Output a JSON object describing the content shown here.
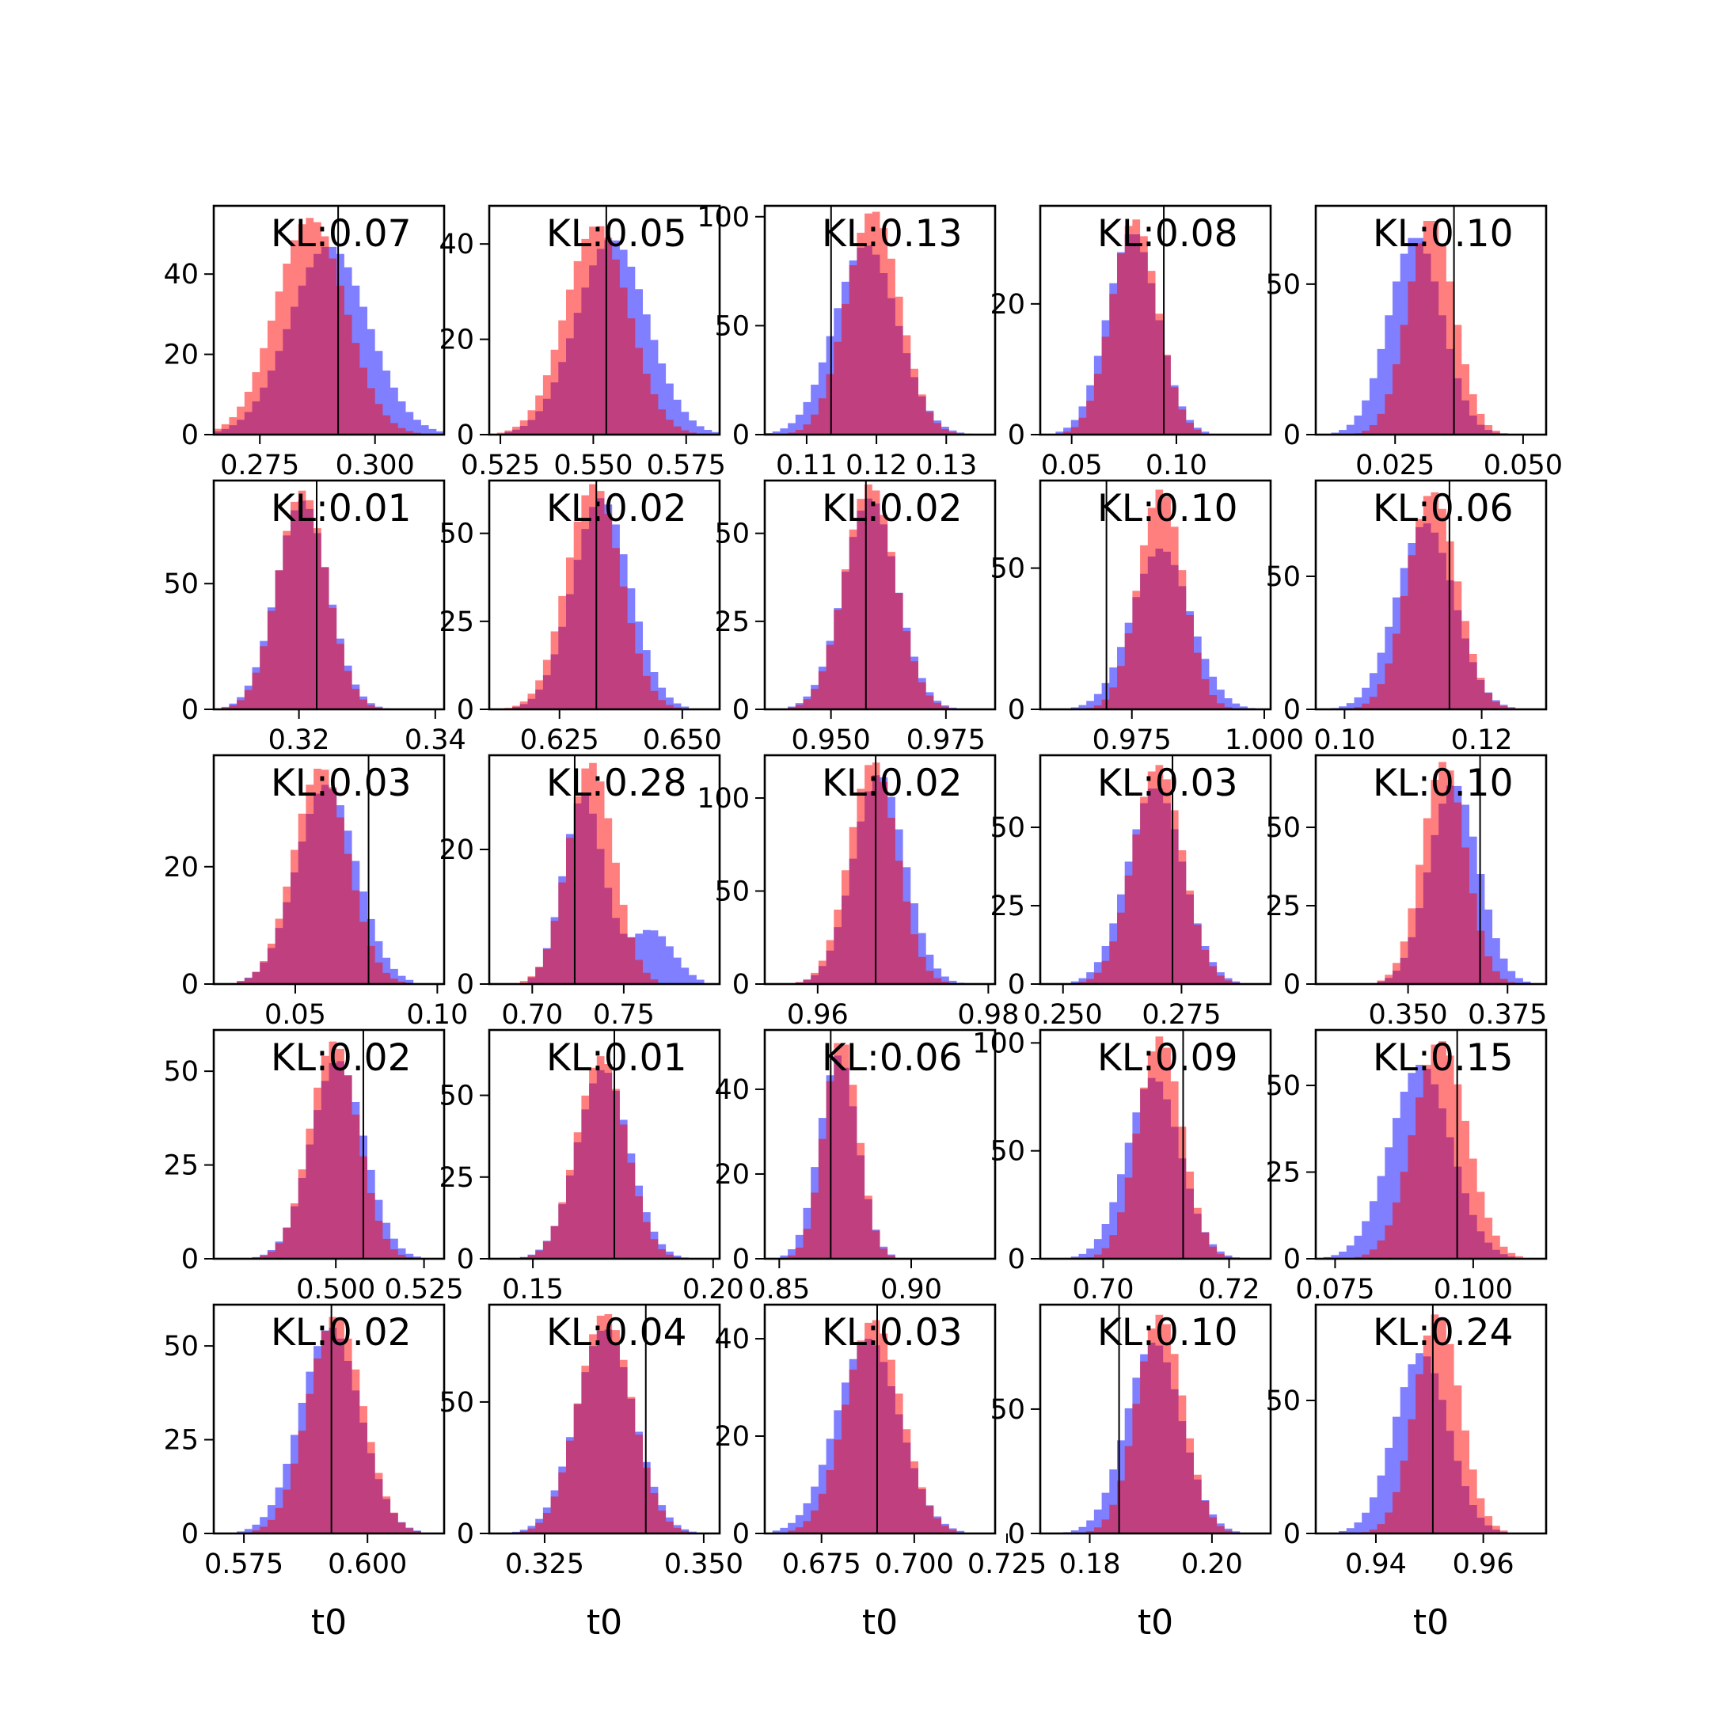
{
  "colors": {
    "red": "#ff0000",
    "blue": "#0000ff",
    "background": "#ffffff",
    "frame": "#000000"
  },
  "chart_data": {
    "type": "grid-of-histograms",
    "rows": 5,
    "cols": 5,
    "grid": false,
    "xlabel": "t0",
    "panels": [
      {
        "annotation": "KL:0.07",
        "xlim": [
          0.265,
          0.315
        ],
        "ylim": [
          0,
          57
        ],
        "xticks": [
          0.275,
          0.3
        ],
        "xticklabels": [
          "0.275",
          "0.300"
        ],
        "yticks": [
          0,
          20,
          40
        ],
        "yticklabels": [
          "0",
          "20",
          "40"
        ],
        "truth": 0.292,
        "red": {
          "mean": 0.286,
          "sd": 0.0075,
          "peak": 54
        },
        "blue": {
          "mean": 0.29,
          "sd": 0.0085,
          "peak": 47
        }
      },
      {
        "annotation": "KL:0.05",
        "xlim": [
          0.522,
          0.584
        ],
        "ylim": [
          0,
          48
        ],
        "xticks": [
          0.525,
          0.55,
          0.575
        ],
        "xticklabels": [
          "0.525",
          "0.550",
          "0.575"
        ],
        "yticks": [
          0,
          20,
          40
        ],
        "yticklabels": [
          "0",
          "20",
          "40"
        ],
        "truth": 0.5535,
        "red": {
          "mean": 0.551,
          "sd": 0.0085,
          "peak": 44
        },
        "blue": {
          "mean": 0.555,
          "sd": 0.0095,
          "peak": 41
        }
      },
      {
        "annotation": "KL:0.13",
        "xlim": [
          0.104,
          0.137
        ],
        "ylim": [
          0,
          105
        ],
        "xticks": [
          0.11,
          0.12,
          0.13
        ],
        "xticklabels": [
          "0.11",
          "0.12",
          "0.13"
        ],
        "yticks": [
          0,
          50,
          100
        ],
        "yticklabels": [
          "0",
          "50",
          "100"
        ],
        "truth": 0.1135,
        "red": {
          "mean": 0.1195,
          "sd": 0.0038,
          "peak": 103
        },
        "blue": {
          "mean": 0.1185,
          "sd": 0.0045,
          "peak": 87
        }
      },
      {
        "annotation": "KL:0.08",
        "xlim": [
          0.035,
          0.145
        ],
        "ylim": [
          0,
          35
        ],
        "xticks": [
          0.05,
          0.1
        ],
        "xticklabels": [
          "0.05",
          "0.10"
        ],
        "yticks": [
          0,
          20
        ],
        "yticklabels": [
          "0",
          "20"
        ],
        "truth": 0.094,
        "red": {
          "mean": 0.08,
          "sd": 0.011,
          "peak": 33
        },
        "blue": {
          "mean": 0.079,
          "sd": 0.012,
          "peak": 31
        }
      },
      {
        "annotation": "KL:0.10",
        "xlim": [
          0.0095,
          0.0545
        ],
        "ylim": [
          0,
          76
        ],
        "xticks": [
          0.025,
          0.05
        ],
        "xticklabels": [
          "0.025",
          "0.050"
        ],
        "yticks": [
          0,
          50
        ],
        "yticklabels": [
          "0",
          "50"
        ],
        "truth": 0.0365,
        "red": {
          "mean": 0.032,
          "sd": 0.0045,
          "peak": 72
        },
        "blue": {
          "mean": 0.029,
          "sd": 0.0052,
          "peak": 66
        }
      },
      {
        "annotation": "KL:0.01",
        "xlim": [
          0.3075,
          0.3413
        ],
        "ylim": [
          0,
          91
        ],
        "xticks": [
          0.32,
          0.34
        ],
        "xticklabels": [
          "0.32",
          "0.34"
        ],
        "yticks": [
          0,
          50
        ],
        "yticklabels": [
          "0",
          "50"
        ],
        "truth": 0.3226,
        "red": {
          "mean": 0.3205,
          "sd": 0.0036,
          "peak": 87
        },
        "blue": {
          "mean": 0.3205,
          "sd": 0.0038,
          "peak": 83
        }
      },
      {
        "annotation": "KL:0.02",
        "xlim": [
          0.6107,
          0.6576
        ],
        "ylim": [
          0,
          65
        ],
        "xticks": [
          0.625,
          0.65
        ],
        "xticklabels": [
          "0.625",
          "0.650"
        ],
        "yticks": [
          0,
          25,
          50
        ],
        "yticklabels": [
          "0",
          "25",
          "50"
        ],
        "truth": 0.6325,
        "red": {
          "mean": 0.632,
          "sd": 0.0055,
          "peak": 64
        },
        "blue": {
          "mean": 0.6335,
          "sd": 0.0058,
          "peak": 60
        }
      },
      {
        "annotation": "KL:0.02",
        "xlim": [
          0.9356,
          0.9857
        ],
        "ylim": [
          0,
          65
        ],
        "xticks": [
          0.95,
          0.975
        ],
        "xticklabels": [
          "0.950",
          "0.975"
        ],
        "yticks": [
          0,
          25,
          50
        ],
        "yticklabels": [
          "0",
          "25",
          "50"
        ],
        "truth": 0.9576,
        "red": {
          "mean": 0.9585,
          "sd": 0.0055,
          "peak": 64
        },
        "blue": {
          "mean": 0.9585,
          "sd": 0.0058,
          "peak": 60
        }
      },
      {
        "annotation": "KL:0.10",
        "xlim": [
          0.9577,
          1.0012
        ],
        "ylim": [
          0,
          81
        ],
        "xticks": [
          0.975,
          1.0
        ],
        "xticklabels": [
          "0.975",
          "1.000"
        ],
        "yticks": [
          0,
          50
        ],
        "yticklabels": [
          "0",
          "50"
        ],
        "truth": 0.9702,
        "red": {
          "mean": 0.9805,
          "sd": 0.0042,
          "peak": 78
        },
        "blue": {
          "mean": 0.9805,
          "sd": 0.0055,
          "peak": 57
        }
      },
      {
        "annotation": "KL:0.06",
        "xlim": [
          0.0958,
          0.1294
        ],
        "ylim": [
          0,
          86
        ],
        "xticks": [
          0.1,
          0.12
        ],
        "xticklabels": [
          "0.10",
          "0.12"
        ],
        "yticks": [
          0,
          50
        ],
        "yticklabels": [
          "0",
          "50"
        ],
        "truth": 0.1153,
        "red": {
          "mean": 0.1128,
          "sd": 0.0036,
          "peak": 82
        },
        "blue": {
          "mean": 0.1118,
          "sd": 0.0042,
          "peak": 70
        }
      },
      {
        "annotation": "KL:0.03",
        "xlim": [
          0.0213,
          0.1024
        ],
        "ylim": [
          0,
          39
        ],
        "xticks": [
          0.05,
          0.1
        ],
        "xticklabels": [
          "0.05",
          "0.10"
        ],
        "yticks": [
          0,
          20
        ],
        "yticklabels": [
          "0",
          "20"
        ],
        "truth": 0.0758,
        "red": {
          "mean": 0.059,
          "sd": 0.0095,
          "peak": 37
        },
        "blue": {
          "mean": 0.061,
          "sd": 0.0105,
          "peak": 34
        }
      },
      {
        "annotation": "KL:0.28",
        "xlim": [
          0.6765,
          0.8024
        ],
        "ylim": [
          0,
          34
        ],
        "xticks": [
          0.7,
          0.75
        ],
        "xticklabels": [
          "0.70",
          "0.75"
        ],
        "yticks": [
          0,
          20
        ],
        "yticklabels": [
          "0",
          "20"
        ],
        "truth": 0.7232,
        "red": {
          "mean": 0.732,
          "sd": 0.0125,
          "peak": 33
        },
        "blue": {
          "mean": 0.728,
          "sd": 0.011,
          "peak": 28,
          "bump": {
            "mean": 0.765,
            "sd": 0.012,
            "peak": 8
          }
        }
      },
      {
        "annotation": "KL:0.02",
        "xlim": [
          0.9538,
          0.9808
        ],
        "ylim": [
          0,
          123
        ],
        "xticks": [
          0.96,
          0.98
        ],
        "xticklabels": [
          "0.96",
          "0.98"
        ],
        "yticks": [
          0,
          50,
          100
        ],
        "yticklabels": [
          "0",
          "50",
          "100"
        ],
        "truth": 0.9668,
        "red": {
          "mean": 0.9665,
          "sd": 0.0028,
          "peak": 120
        },
        "blue": {
          "mean": 0.9672,
          "sd": 0.003,
          "peak": 113
        }
      },
      {
        "annotation": "KL:0.03",
        "xlim": [
          0.2452,
          0.2938
        ],
        "ylim": [
          0,
          73
        ],
        "xticks": [
          0.25,
          0.275
        ],
        "xticklabels": [
          "0.250",
          "0.275"
        ],
        "yticks": [
          0,
          25,
          50
        ],
        "yticklabels": [
          "0",
          "25",
          "50"
        ],
        "truth": 0.2731,
        "red": {
          "mean": 0.27,
          "sd": 0.0052,
          "peak": 70
        },
        "blue": {
          "mean": 0.2695,
          "sd": 0.0058,
          "peak": 63
        }
      },
      {
        "annotation": "KL:0.10",
        "xlim": [
          0.3268,
          0.3847
        ],
        "ylim": [
          0,
          73
        ],
        "xticks": [
          0.35,
          0.375
        ],
        "xticklabels": [
          "0.350",
          "0.375"
        ],
        "yticks": [
          0,
          25,
          50
        ],
        "yticklabels": [
          "0",
          "25",
          "50"
        ],
        "truth": 0.3681,
        "red": {
          "mean": 0.359,
          "sd": 0.0055,
          "peak": 71
        },
        "blue": {
          "mean": 0.3615,
          "sd": 0.0062,
          "peak": 64
        }
      },
      {
        "annotation": "KL:0.02",
        "xlim": [
          0.4654,
          0.5307
        ],
        "ylim": [
          0,
          61
        ],
        "xticks": [
          0.5,
          0.525
        ],
        "xticklabels": [
          "0.500",
          "0.525"
        ],
        "yticks": [
          0,
          25,
          50
        ],
        "yticklabels": [
          "0",
          "25",
          "50"
        ],
        "truth": 0.5078,
        "red": {
          "mean": 0.4995,
          "sd": 0.0068,
          "peak": 58
        },
        "blue": {
          "mean": 0.5005,
          "sd": 0.0075,
          "peak": 53
        }
      },
      {
        "annotation": "KL:0.01",
        "xlim": [
          0.1379,
          0.2018
        ],
        "ylim": [
          0,
          70
        ],
        "xticks": [
          0.15,
          0.2
        ],
        "xticklabels": [
          "0.15",
          "0.20"
        ],
        "yticks": [
          0,
          25,
          50
        ],
        "yticklabels": [
          "0",
          "25",
          "50"
        ],
        "truth": 0.1726,
        "red": {
          "mean": 0.169,
          "sd": 0.0068,
          "peak": 62
        },
        "blue": {
          "mean": 0.1695,
          "sd": 0.0072,
          "peak": 58
        }
      },
      {
        "annotation": "KL:0.06",
        "xlim": [
          0.8445,
          0.9318
        ],
        "ylim": [
          0,
          54
        ],
        "xticks": [
          0.85,
          0.9
        ],
        "xticklabels": [
          "0.85",
          "0.90"
        ],
        "yticks": [
          0,
          20,
          40
        ],
        "yticklabels": [
          "0",
          "20",
          "40"
        ],
        "truth": 0.8695,
        "red": {
          "mean": 0.8735,
          "sd": 0.0065,
          "peak": 52
        },
        "blue": {
          "mean": 0.8725,
          "sd": 0.0072,
          "peak": 48
        }
      },
      {
        "annotation": "KL:0.09",
        "xlim": [
          0.69,
          0.7266
        ],
        "ylim": [
          0,
          106
        ],
        "xticks": [
          0.7,
          0.72
        ],
        "xticklabels": [
          "0.70",
          "0.72"
        ],
        "yticks": [
          0,
          50,
          100
        ],
        "yticklabels": [
          "0",
          "50",
          "100"
        ],
        "truth": 0.7127,
        "red": {
          "mean": 0.709,
          "sd": 0.0035,
          "peak": 103
        },
        "blue": {
          "mean": 0.708,
          "sd": 0.0042,
          "peak": 84
        }
      },
      {
        "annotation": "KL:0.15",
        "xlim": [
          0.0715,
          0.1132
        ],
        "ylim": [
          0,
          66
        ],
        "xticks": [
          0.075,
          0.1
        ],
        "xticklabels": [
          "0.075",
          "0.100"
        ],
        "yticks": [
          0,
          25,
          50
        ],
        "yticklabels": [
          "0",
          "25",
          "50"
        ],
        "truth": 0.0971,
        "red": {
          "mean": 0.094,
          "sd": 0.0048,
          "peak": 63
        },
        "blue": {
          "mean": 0.0905,
          "sd": 0.0055,
          "peak": 56
        }
      },
      {
        "annotation": "KL:0.02",
        "xlim": [
          0.5689,
          0.6155
        ],
        "ylim": [
          0,
          61
        ],
        "xticks": [
          0.575,
          0.6
        ],
        "xticklabels": [
          "0.575",
          "0.600"
        ],
        "yticks": [
          0,
          25,
          50
        ],
        "yticklabels": [
          "0",
          "25",
          "50"
        ],
        "truth": 0.5927,
        "red": {
          "mean": 0.5935,
          "sd": 0.0055,
          "peak": 58
        },
        "blue": {
          "mean": 0.5925,
          "sd": 0.006,
          "peak": 55
        }
      },
      {
        "annotation": "KL:0.04",
        "xlim": [
          0.3163,
          0.3525
        ],
        "ylim": [
          0,
          87
        ],
        "xticks": [
          0.325,
          0.35
        ],
        "xticklabels": [
          "0.325",
          "0.350"
        ],
        "yticks": [
          0,
          50
        ],
        "yticklabels": [
          "0",
          "50"
        ],
        "truth": 0.3409,
        "red": {
          "mean": 0.3345,
          "sd": 0.0042,
          "peak": 84
        },
        "blue": {
          "mean": 0.3345,
          "sd": 0.0045,
          "peak": 78
        }
      },
      {
        "annotation": "KL:0.03",
        "xlim": [
          0.6597,
          0.7218
        ],
        "ylim": [
          0,
          47
        ],
        "xticks": [
          0.675,
          0.7,
          0.725
        ],
        "xticklabels": [
          "0.675",
          "0.700",
          "0.725"
        ],
        "yticks": [
          0,
          20,
          40
        ],
        "yticklabels": [
          "0",
          "20",
          "40"
        ],
        "truth": 0.69,
        "red": {
          "mean": 0.689,
          "sd": 0.0075,
          "peak": 44
        },
        "blue": {
          "mean": 0.6875,
          "sd": 0.0085,
          "peak": 40
        }
      },
      {
        "annotation": "KL:0.10",
        "xlim": [
          0.1719,
          0.2096
        ],
        "ylim": [
          0,
          92
        ],
        "xticks": [
          0.18,
          0.2
        ],
        "xticklabels": [
          "0.18",
          "0.20"
        ],
        "yticks": [
          0,
          50
        ],
        "yticklabels": [
          "0",
          "50"
        ],
        "truth": 0.1848,
        "red": {
          "mean": 0.1915,
          "sd": 0.0038,
          "peak": 88
        },
        "blue": {
          "mean": 0.1905,
          "sd": 0.0045,
          "peak": 77
        }
      },
      {
        "annotation": "KL:0.24",
        "xlim": [
          0.9288,
          0.9717
        ],
        "ylim": [
          0,
          86
        ],
        "xticks": [
          0.94,
          0.96
        ],
        "xticklabels": [
          "0.94",
          "0.96"
        ],
        "yticks": [
          0,
          50
        ],
        "yticklabels": [
          "0",
          "50"
        ],
        "truth": 0.9506,
        "red": {
          "mean": 0.9515,
          "sd": 0.0042,
          "peak": 83
        },
        "blue": {
          "mean": 0.9485,
          "sd": 0.005,
          "peak": 68
        }
      }
    ]
  }
}
